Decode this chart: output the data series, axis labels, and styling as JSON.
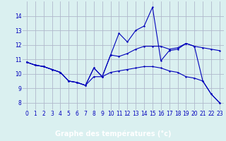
{
  "xlabel": "Graphe des températures (°c)",
  "hours": [
    0,
    1,
    2,
    3,
    4,
    5,
    6,
    7,
    8,
    9,
    10,
    11,
    12,
    13,
    14,
    15,
    16,
    17,
    18,
    19,
    20,
    21,
    22,
    23
  ],
  "line1": [
    10.8,
    10.6,
    10.5,
    10.3,
    10.1,
    9.5,
    9.4,
    9.2,
    10.4,
    9.8,
    11.3,
    12.8,
    12.2,
    13.0,
    13.3,
    14.6,
    10.9,
    11.6,
    11.7,
    12.1,
    11.9,
    9.5,
    8.6,
    8.0
  ],
  "line2": [
    10.8,
    10.6,
    10.5,
    10.3,
    10.1,
    9.5,
    9.4,
    9.2,
    10.4,
    9.8,
    11.3,
    11.2,
    11.4,
    11.7,
    11.9,
    11.9,
    11.9,
    11.7,
    11.8,
    12.1,
    11.9,
    11.8,
    11.7,
    11.6
  ],
  "line3": [
    10.8,
    10.6,
    10.5,
    10.3,
    10.1,
    9.5,
    9.4,
    9.2,
    9.8,
    9.8,
    10.1,
    10.2,
    10.3,
    10.4,
    10.5,
    10.5,
    10.4,
    10.2,
    10.1,
    9.8,
    9.7,
    9.5,
    8.6,
    8.0
  ],
  "line_color": "#0000bb",
  "bg_color": "#daf0f0",
  "grid_color": "#b0b8cc",
  "bottom_bar_color": "#2255cc",
  "ylim": [
    7.5,
    15.0
  ],
  "yticks": [
    8,
    9,
    10,
    11,
    12,
    13,
    14
  ],
  "xlim": [
    -0.5,
    23.5
  ],
  "xticks": [
    0,
    1,
    2,
    3,
    4,
    5,
    6,
    7,
    8,
    9,
    10,
    11,
    12,
    13,
    14,
    15,
    16,
    17,
    18,
    19,
    20,
    21,
    22,
    23
  ],
  "xlabel_fontsize": 7,
  "tick_fontsize": 5.5
}
